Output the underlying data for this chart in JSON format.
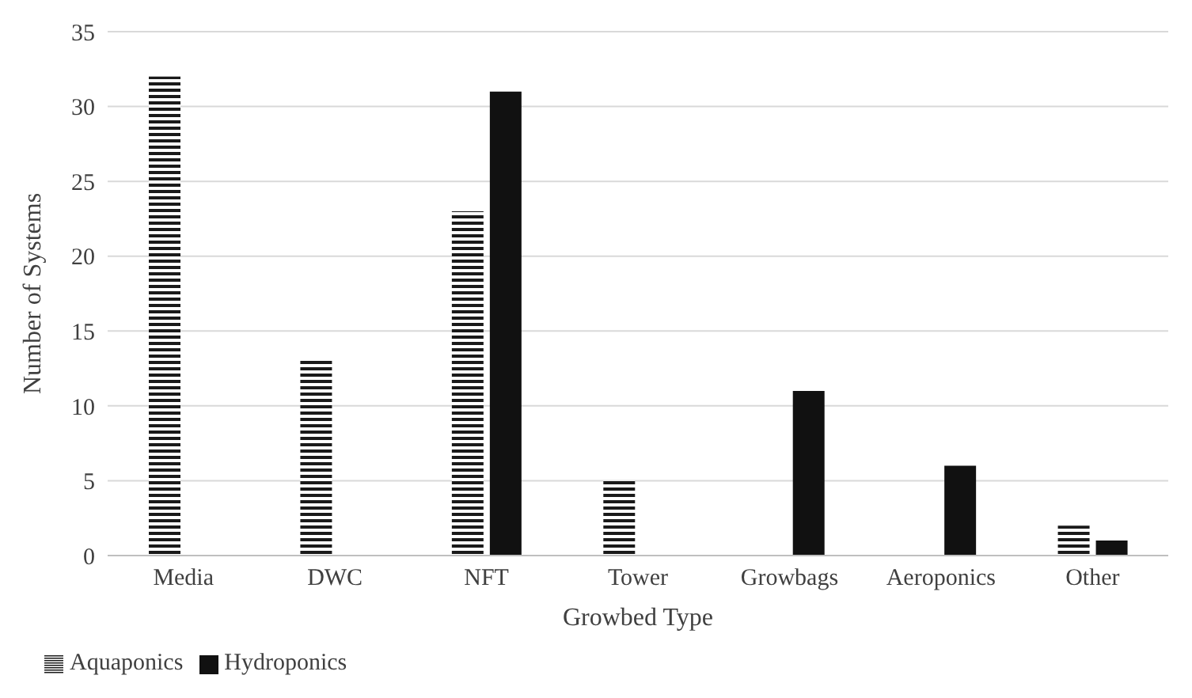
{
  "chart_data": {
    "type": "bar",
    "xlabel": "Growbed Type",
    "ylabel": "Number of  Systems",
    "categories": [
      "Media",
      "DWC",
      "NFT",
      "Tower",
      "Growbags",
      "Aeroponics",
      "Other"
    ],
    "series": [
      {
        "name": "Aquaponics",
        "color": "#1a1a1a",
        "values": [
          32,
          13,
          23,
          5,
          0,
          0,
          2
        ]
      },
      {
        "name": "Hydroponics",
        "color": "#111111",
        "values": [
          0,
          0,
          31,
          0,
          11,
          6,
          1
        ]
      }
    ],
    "ylim": [
      0,
      35
    ],
    "yticks": [
      0,
      5,
      10,
      15,
      20,
      25,
      30,
      35
    ],
    "grid": "y",
    "legend": "bottom left"
  }
}
